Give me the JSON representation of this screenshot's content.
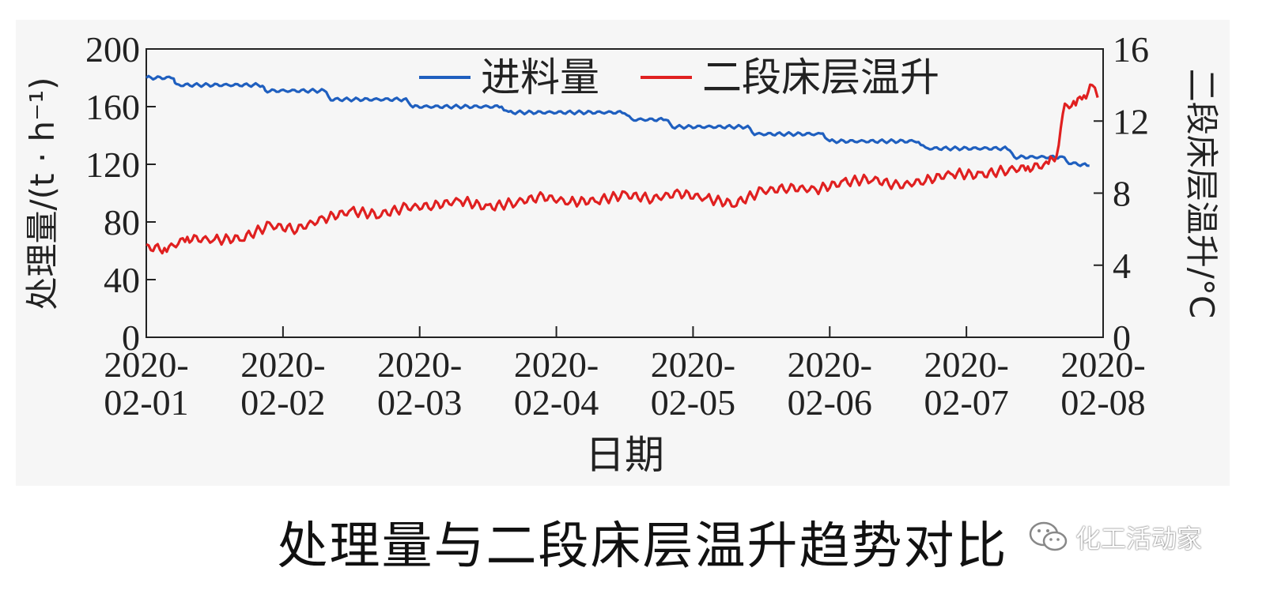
{
  "chart_data": {
    "type": "line",
    "legend": [
      "进料量",
      "二段床层温升"
    ],
    "legend_position": "top",
    "xlabel": "日期",
    "ylabel_left": "处理量/(t · h⁻¹)",
    "ylabel_right": "二段床层温升/°C",
    "x_ticks": [
      [
        "2020-",
        "02-01"
      ],
      [
        "2020-",
        "02-02"
      ],
      [
        "2020-",
        "02-03"
      ],
      [
        "2020-",
        "02-04"
      ],
      [
        "2020-",
        "02-05"
      ],
      [
        "2020-",
        "02-06"
      ],
      [
        "2020-",
        "02-07"
      ],
      [
        "2020-",
        "02-08"
      ]
    ],
    "xlim": [
      0,
      7
    ],
    "ylim_left": [
      0,
      200
    ],
    "yticks_left": [
      "0",
      "40",
      "80",
      "120",
      "160",
      "200"
    ],
    "ylim_right": [
      0,
      16
    ],
    "yticks_right": [
      "0",
      "4",
      "8",
      "12",
      "16"
    ],
    "series": [
      {
        "name": "进料量",
        "axis": "left",
        "color": "#1f5fbf",
        "points": [
          [
            0.0,
            180
          ],
          [
            0.2,
            180
          ],
          [
            0.22,
            175
          ],
          [
            0.85,
            175
          ],
          [
            0.87,
            171
          ],
          [
            1.3,
            171
          ],
          [
            1.35,
            165
          ],
          [
            1.9,
            165
          ],
          [
            1.95,
            160
          ],
          [
            2.6,
            160
          ],
          [
            2.65,
            156
          ],
          [
            3.5,
            156
          ],
          [
            3.55,
            151
          ],
          [
            3.8,
            151
          ],
          [
            3.85,
            146
          ],
          [
            4.4,
            146
          ],
          [
            4.45,
            141
          ],
          [
            4.95,
            141
          ],
          [
            5.0,
            136
          ],
          [
            5.65,
            136
          ],
          [
            5.7,
            131
          ],
          [
            6.3,
            131
          ],
          [
            6.35,
            125
          ],
          [
            6.7,
            125
          ],
          [
            6.75,
            121
          ],
          [
            6.9,
            119
          ]
        ]
      },
      {
        "name": "二段床层温升",
        "axis": "right",
        "color": "#e02020",
        "points": [
          [
            0.0,
            5.0
          ],
          [
            0.15,
            4.9
          ],
          [
            0.3,
            5.5
          ],
          [
            0.5,
            5.4
          ],
          [
            0.7,
            5.5
          ],
          [
            0.9,
            6.2
          ],
          [
            1.1,
            6.0
          ],
          [
            1.3,
            6.6
          ],
          [
            1.5,
            7.0
          ],
          [
            1.7,
            6.8
          ],
          [
            1.9,
            7.2
          ],
          [
            2.1,
            7.3
          ],
          [
            2.3,
            7.6
          ],
          [
            2.5,
            7.2
          ],
          [
            2.7,
            7.5
          ],
          [
            2.9,
            7.8
          ],
          [
            3.1,
            7.5
          ],
          [
            3.3,
            7.6
          ],
          [
            3.5,
            7.9
          ],
          [
            3.7,
            7.7
          ],
          [
            3.9,
            8.0
          ],
          [
            4.1,
            7.7
          ],
          [
            4.3,
            7.4
          ],
          [
            4.5,
            8.1
          ],
          [
            4.7,
            8.3
          ],
          [
            4.9,
            8.2
          ],
          [
            5.1,
            8.6
          ],
          [
            5.3,
            8.8
          ],
          [
            5.5,
            8.4
          ],
          [
            5.7,
            8.7
          ],
          [
            5.9,
            9.1
          ],
          [
            6.1,
            9.0
          ],
          [
            6.3,
            9.3
          ],
          [
            6.45,
            9.4
          ],
          [
            6.6,
            9.6
          ],
          [
            6.66,
            10.2
          ],
          [
            6.72,
            12.8
          ],
          [
            6.8,
            13.0
          ],
          [
            6.86,
            13.4
          ],
          [
            6.92,
            13.9
          ],
          [
            6.96,
            13.3
          ]
        ]
      }
    ]
  },
  "caption": "处理量与二段床层温升趋势对比",
  "watermark_text": "化工活动家",
  "wechat_icon": "wechat-icon"
}
